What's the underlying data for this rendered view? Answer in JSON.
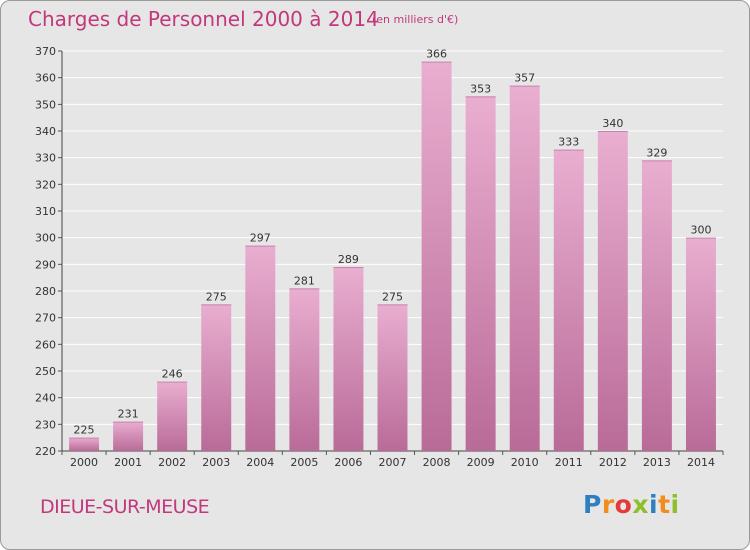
{
  "header": {
    "title": "Charges de Personnel 2000 à 2014",
    "units": "(en milliers d'€)"
  },
  "footer": {
    "location": "DIEUE-SUR-MEUSE",
    "logo_letters": [
      {
        "char": "P",
        "color": "#2e7fc1"
      },
      {
        "char": "r",
        "color": "#f28c1c"
      },
      {
        "char": "o",
        "color": "#e43a3a"
      },
      {
        "char": "x",
        "color": "#8fbf2a"
      },
      {
        "char": "i",
        "color": "#2e7fc1"
      },
      {
        "char": "t",
        "color": "#f28c1c"
      },
      {
        "char": "i",
        "color": "#8fbf2a"
      }
    ]
  },
  "colors": {
    "accent": "#c2387c",
    "bar_top": "#e9aed0",
    "bar_bottom": "#b96b98",
    "grid": "#ffffff",
    "plot_bg": "#e6e6e6"
  },
  "chart_data": {
    "type": "bar",
    "categories": [
      "2000",
      "2001",
      "2002",
      "2003",
      "2004",
      "2005",
      "2006",
      "2007",
      "2008",
      "2009",
      "2010",
      "2011",
      "2012",
      "2013",
      "2014"
    ],
    "values": [
      225,
      231,
      246,
      275,
      297,
      281,
      289,
      275,
      366,
      353,
      357,
      333,
      340,
      329,
      300
    ],
    "title": "Charges de Personnel 2000 à 2014",
    "subtitle": "(en milliers d'€)",
    "ylim": [
      220,
      370
    ],
    "yticks": [
      220,
      230,
      240,
      250,
      260,
      270,
      280,
      290,
      300,
      310,
      320,
      330,
      340,
      350,
      360,
      370
    ],
    "grid": true,
    "data_labels": true
  }
}
